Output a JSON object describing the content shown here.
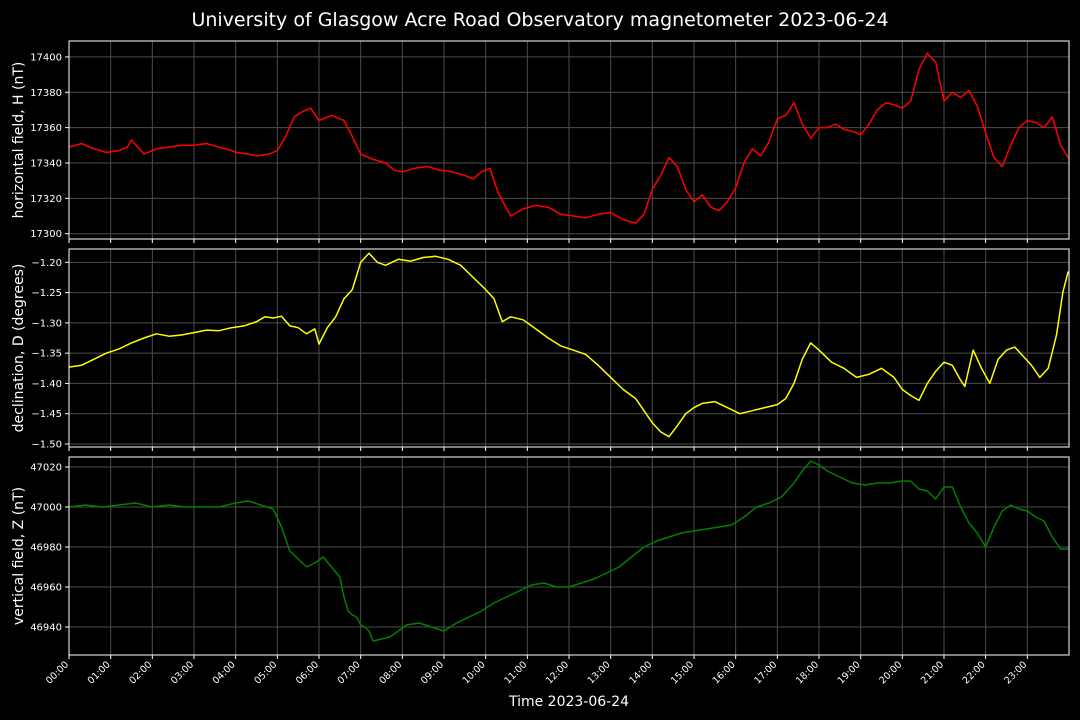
{
  "title": "University of Glasgow Acre Road Observatory magnetometer 2023-06-24",
  "xlabel": "Time 2023-06-24",
  "chart_data": [
    {
      "type": "line",
      "ylabel": "horizontal field, H (nT)",
      "ylim": [
        17297,
        17409
      ],
      "yticks": [
        17300,
        17320,
        17340,
        17360,
        17380,
        17400
      ],
      "ytick_decimals": 0,
      "grid": true,
      "color": "#ff0000",
      "x": [
        0.0,
        0.3,
        0.6,
        0.9,
        1.2,
        1.4,
        1.5,
        1.8,
        2.1,
        2.4,
        2.7,
        3.0,
        3.3,
        3.6,
        3.9,
        4.0,
        4.3,
        4.5,
        4.8,
        5.0,
        5.2,
        5.4,
        5.6,
        5.8,
        6.0,
        6.3,
        6.6,
        6.8,
        7.0,
        7.3,
        7.6,
        7.8,
        8.0,
        8.3,
        8.6,
        8.9,
        9.2,
        9.5,
        9.7,
        9.9,
        10.1,
        10.3,
        10.6,
        10.9,
        11.2,
        11.5,
        11.8,
        12.1,
        12.4,
        12.7,
        13.0,
        13.3,
        13.6,
        13.8,
        14.0,
        14.2,
        14.4,
        14.6,
        14.8,
        15.0,
        15.2,
        15.4,
        15.6,
        15.8,
        16.0,
        16.2,
        16.4,
        16.6,
        16.8,
        17.0,
        17.2,
        17.4,
        17.6,
        17.8,
        18.0,
        18.2,
        18.4,
        18.6,
        18.8,
        19.0,
        19.2,
        19.4,
        19.6,
        19.8,
        20.0,
        20.2,
        20.4,
        20.6,
        20.8,
        21.0,
        21.2,
        21.4,
        21.6,
        21.8,
        22.0,
        22.2,
        22.4,
        22.6,
        22.8,
        23.0,
        23.2,
        23.4,
        23.6,
        23.8,
        23.98
      ],
      "y": [
        17349,
        17351,
        17348,
        17346,
        17347,
        17349,
        17353,
        17345,
        17348,
        17349,
        17350,
        17350,
        17351,
        17349,
        17347,
        17346,
        17345,
        17344,
        17345,
        17347,
        17355,
        17366,
        17369,
        17371,
        17364,
        17367,
        17364,
        17355,
        17345,
        17342,
        17340,
        17336,
        17335,
        17337,
        17338,
        17336,
        17335,
        17333,
        17331,
        17335,
        17337,
        17323,
        17310,
        17314,
        17316,
        17315,
        17311,
        17310,
        17309,
        17311,
        17312,
        17308,
        17306,
        17311,
        17325,
        17333,
        17343,
        17338,
        17325,
        17318,
        17322,
        17315,
        17313,
        17318,
        17326,
        17340,
        17348,
        17344,
        17352,
        17365,
        17367,
        17374,
        17362,
        17354,
        17360,
        17360,
        17362,
        17359,
        17358,
        17356,
        17362,
        17370,
        17374,
        17373,
        17371,
        17375,
        17393,
        17402,
        17397,
        17375,
        17380,
        17377,
        17381,
        17372,
        17357,
        17343,
        17338,
        17350,
        17360,
        17364,
        17363,
        17360,
        17366,
        17350,
        17343
      ]
    },
    {
      "type": "line",
      "ylabel": "declination, D (degrees)",
      "ylim": [
        -1.505,
        -1.178
      ],
      "yticks": [
        -1.5,
        -1.45,
        -1.4,
        -1.35,
        -1.3,
        -1.25,
        -1.2
      ],
      "ytick_decimals": 2,
      "grid": true,
      "color": "#ffff00",
      "x": [
        0.0,
        0.3,
        0.6,
        0.9,
        1.2,
        1.5,
        1.8,
        2.1,
        2.4,
        2.7,
        3.0,
        3.3,
        3.6,
        3.9,
        4.2,
        4.5,
        4.7,
        4.9,
        5.1,
        5.3,
        5.5,
        5.7,
        5.9,
        6.0,
        6.2,
        6.4,
        6.6,
        6.8,
        7.0,
        7.2,
        7.4,
        7.6,
        7.9,
        8.2,
        8.5,
        8.8,
        9.1,
        9.4,
        9.7,
        10.0,
        10.2,
        10.4,
        10.6,
        10.9,
        11.2,
        11.5,
        11.8,
        12.1,
        12.4,
        12.7,
        13.0,
        13.3,
        13.6,
        13.8,
        14.0,
        14.2,
        14.4,
        14.6,
        14.8,
        15.0,
        15.2,
        15.5,
        15.8,
        16.1,
        16.4,
        16.7,
        17.0,
        17.2,
        17.4,
        17.6,
        17.8,
        18.0,
        18.3,
        18.6,
        18.9,
        19.2,
        19.5,
        19.8,
        20.0,
        20.2,
        20.4,
        20.6,
        20.8,
        21.0,
        21.2,
        21.4,
        21.5,
        21.7,
        21.9,
        22.1,
        22.3,
        22.5,
        22.7,
        22.9,
        23.1,
        23.3,
        23.5,
        23.7,
        23.85,
        23.98
      ],
      "y": [
        -1.373,
        -1.37,
        -1.36,
        -1.35,
        -1.343,
        -1.333,
        -1.325,
        -1.318,
        -1.322,
        -1.32,
        -1.316,
        -1.312,
        -1.313,
        -1.308,
        -1.305,
        -1.298,
        -1.29,
        -1.292,
        -1.289,
        -1.305,
        -1.308,
        -1.318,
        -1.31,
        -1.335,
        -1.308,
        -1.29,
        -1.26,
        -1.245,
        -1.2,
        -1.185,
        -1.2,
        -1.205,
        -1.195,
        -1.198,
        -1.192,
        -1.19,
        -1.195,
        -1.205,
        -1.225,
        -1.245,
        -1.26,
        -1.298,
        -1.29,
        -1.295,
        -1.31,
        -1.325,
        -1.338,
        -1.345,
        -1.352,
        -1.37,
        -1.39,
        -1.41,
        -1.425,
        -1.445,
        -1.465,
        -1.48,
        -1.488,
        -1.47,
        -1.45,
        -1.44,
        -1.433,
        -1.43,
        -1.44,
        -1.45,
        -1.445,
        -1.44,
        -1.435,
        -1.425,
        -1.4,
        -1.36,
        -1.333,
        -1.345,
        -1.365,
        -1.375,
        -1.39,
        -1.385,
        -1.375,
        -1.39,
        -1.41,
        -1.42,
        -1.428,
        -1.4,
        -1.38,
        -1.365,
        -1.37,
        -1.395,
        -1.405,
        -1.345,
        -1.375,
        -1.4,
        -1.36,
        -1.345,
        -1.34,
        -1.355,
        -1.37,
        -1.39,
        -1.375,
        -1.32,
        -1.25,
        -1.215
      ]
    },
    {
      "type": "line",
      "ylabel": "vertical field, Z (nT)",
      "ylim": [
        46926,
        47025
      ],
      "yticks": [
        46940,
        46960,
        46980,
        47000,
        47020
      ],
      "ytick_decimals": 0,
      "grid": true,
      "color": "#008000",
      "x": [
        0.0,
        0.4,
        0.8,
        1.2,
        1.6,
        2.0,
        2.4,
        2.8,
        3.2,
        3.6,
        4.0,
        4.3,
        4.6,
        4.9,
        5.1,
        5.3,
        5.5,
        5.7,
        5.9,
        6.1,
        6.3,
        6.5,
        6.6,
        6.7,
        6.8,
        6.9,
        7.0,
        7.1,
        7.2,
        7.3,
        7.5,
        7.7,
        7.9,
        8.1,
        8.4,
        8.7,
        9.0,
        9.3,
        9.6,
        9.9,
        10.2,
        10.5,
        10.8,
        11.1,
        11.4,
        11.7,
        12.0,
        12.3,
        12.6,
        12.9,
        13.2,
        13.5,
        13.8,
        14.1,
        14.4,
        14.7,
        15.0,
        15.3,
        15.6,
        15.9,
        16.2,
        16.5,
        16.8,
        17.1,
        17.4,
        17.6,
        17.8,
        18.0,
        18.2,
        18.5,
        18.8,
        19.1,
        19.4,
        19.7,
        20.0,
        20.2,
        20.4,
        20.6,
        20.8,
        21.0,
        21.2,
        21.4,
        21.6,
        21.8,
        22.0,
        22.2,
        22.4,
        22.6,
        22.8,
        23.0,
        23.2,
        23.4,
        23.6,
        23.8,
        23.98
      ],
      "y": [
        47000,
        47001,
        47000,
        47001,
        47002,
        47000,
        47001,
        47000,
        47000,
        47000,
        47002,
        47003,
        47001,
        46999,
        46990,
        46978,
        46974,
        46970,
        46972,
        46975,
        46970,
        46965,
        46955,
        46948,
        46946,
        46945,
        46941,
        46940,
        46938,
        46933,
        46934,
        46935,
        46938,
        46941,
        46942,
        46940,
        46938,
        46942,
        46945,
        46948,
        46952,
        46955,
        46958,
        46961,
        46962,
        46960,
        46960,
        46962,
        46964,
        46967,
        46970,
        46975,
        46980,
        46983,
        46985,
        46987,
        46988,
        46989,
        46990,
        46991,
        46995,
        47000,
        47002,
        47005,
        47012,
        47018,
        47023,
        47021,
        47018,
        47015,
        47012,
        47011,
        47012,
        47012,
        47013,
        47013,
        47009,
        47008,
        47004,
        47010,
        47010,
        47000,
        46992,
        46987,
        46980,
        46990,
        46998,
        47001,
        46999,
        46998,
        46995,
        46993,
        46985,
        46979,
        46979
      ]
    }
  ],
  "xticks": [
    "00:00",
    "01:00",
    "02:00",
    "03:00",
    "04:00",
    "05:00",
    "06:00",
    "07:00",
    "08:00",
    "09:00",
    "10:00",
    "11:00",
    "12:00",
    "13:00",
    "14:00",
    "15:00",
    "16:00",
    "17:00",
    "18:00",
    "19:00",
    "20:00",
    "21:00",
    "22:00",
    "23:00"
  ]
}
